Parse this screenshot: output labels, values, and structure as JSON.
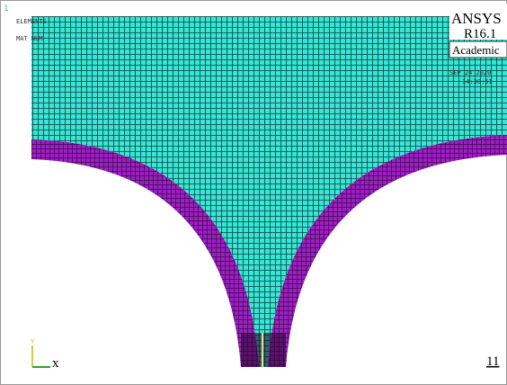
{
  "window": {
    "number": "1",
    "labels": [
      "ELEMENTS",
      "MAT NUM"
    ]
  },
  "brand": {
    "name": "ANSYS",
    "version": "R16.1",
    "license": "Academic",
    "date": "SEP 24 2020",
    "time": "14:30:51"
  },
  "axes": {
    "y": "Y",
    "x": "x"
  },
  "footer": "11"
}
